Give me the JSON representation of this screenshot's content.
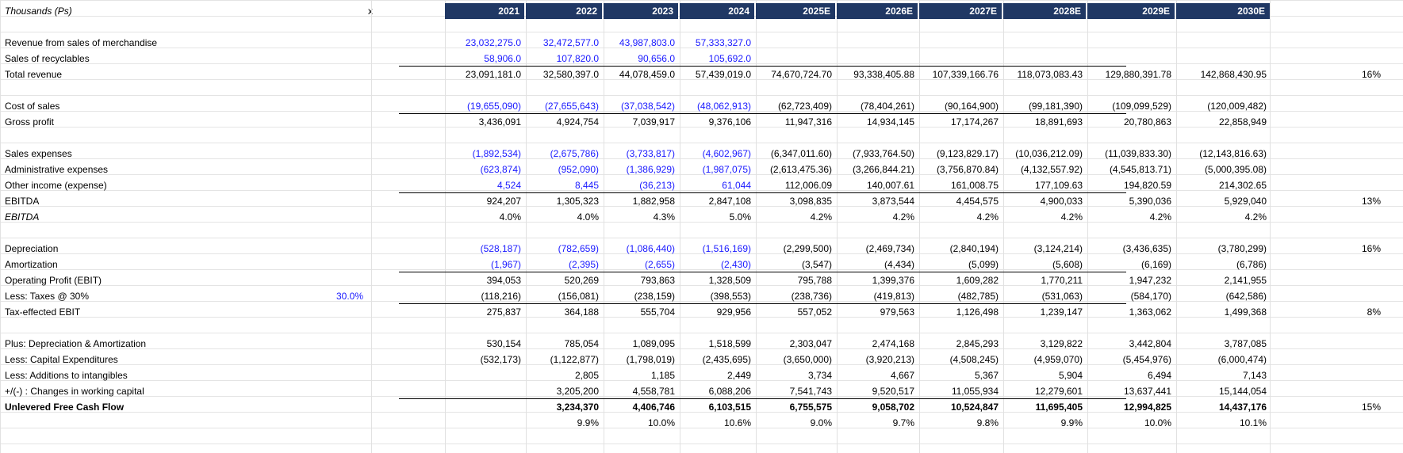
{
  "sheet": {
    "corner_label": "Thousands (Ps)",
    "x_marker": "x",
    "years": [
      "2021",
      "2022",
      "2023",
      "2024",
      "2025E",
      "2026E",
      "2027E",
      "2028E",
      "2029E",
      "2030E"
    ],
    "tax_rate": "30.0%",
    "rows": [
      {
        "label": "Revenue from sales of merchandise",
        "cells": [
          "23,032,275.0",
          "32,472,577.0",
          "43,987,803.0",
          "57,333,327.0",
          "",
          "",
          "",
          "",
          "",
          ""
        ]
      },
      {
        "label": "Sales of recyclables",
        "cells": [
          "58,906.0",
          "107,820.0",
          "90,656.0",
          "105,692.0",
          "",
          "",
          "",
          "",
          "",
          ""
        ]
      },
      {
        "label": "Total revenue",
        "cells": [
          "23,091,181.0",
          "32,580,397.0",
          "44,078,459.0",
          "57,439,019.0",
          "74,670,724.70",
          "93,338,405.88",
          "107,339,166.76",
          "118,073,083.43",
          "129,880,391.78",
          "142,868,430.95"
        ],
        "growth": "16%"
      },
      {
        "label": "Cost of sales",
        "cells": [
          "(19,655,090)",
          "(27,655,643)",
          "(37,038,542)",
          "(48,062,913)",
          "(62,723,409)",
          "(78,404,261)",
          "(90,164,900)",
          "(99,181,390)",
          "(109,099,529)",
          "(120,009,482)"
        ]
      },
      {
        "label": "Gross profit",
        "cells": [
          "3,436,091",
          "4,924,754",
          "7,039,917",
          "9,376,106",
          "11,947,316",
          "14,934,145",
          "17,174,267",
          "18,891,693",
          "20,780,863",
          "22,858,949"
        ]
      },
      {
        "label": "Sales expenses",
        "cells": [
          "(1,892,534)",
          "(2,675,786)",
          "(3,733,817)",
          "(4,602,967)",
          "(6,347,011.60)",
          "(7,933,764.50)",
          "(9,123,829.17)",
          "(10,036,212.09)",
          "(11,039,833.30)",
          "(12,143,816.63)"
        ]
      },
      {
        "label": "Administrative expenses",
        "cells": [
          "(623,874)",
          "(952,090)",
          "(1,386,929)",
          "(1,987,075)",
          "(2,613,475.36)",
          "(3,266,844.21)",
          "(3,756,870.84)",
          "(4,132,557.92)",
          "(4,545,813.71)",
          "(5,000,395.08)"
        ]
      },
      {
        "label": "Other income (expense)",
        "cells": [
          "4,524",
          "8,445",
          "(36,213)",
          "61,044",
          "112,006.09",
          "140,007.61",
          "161,008.75",
          "177,109.63",
          "194,820.59",
          "214,302.65"
        ]
      },
      {
        "label": "EBITDA",
        "cells": [
          "924,207",
          "1,305,323",
          "1,882,958",
          "2,847,108",
          "3,098,835",
          "3,873,544",
          "4,454,575",
          "4,900,033",
          "5,390,036",
          "5,929,040"
        ],
        "growth": "13%"
      },
      {
        "label": "EBITDA",
        "cells": [
          "4.0%",
          "4.0%",
          "4.3%",
          "5.0%",
          "4.2%",
          "4.2%",
          "4.2%",
          "4.2%",
          "4.2%",
          "4.2%"
        ]
      },
      {
        "label": "Depreciation",
        "cells": [
          "(528,187)",
          "(782,659)",
          "(1,086,440)",
          "(1,516,169)",
          "(2,299,500)",
          "(2,469,734)",
          "(2,840,194)",
          "(3,124,214)",
          "(3,436,635)",
          "(3,780,299)"
        ],
        "growth": "16%"
      },
      {
        "label": "Amortization",
        "cells": [
          "(1,967)",
          "(2,395)",
          "(2,655)",
          "(2,430)",
          "(3,547)",
          "(4,434)",
          "(5,099)",
          "(5,608)",
          "(6,169)",
          "(6,786)"
        ]
      },
      {
        "label": "Operating Profit (EBIT)",
        "cells": [
          "394,053",
          "520,269",
          "793,863",
          "1,328,509",
          "795,788",
          "1,399,376",
          "1,609,282",
          "1,770,211",
          "1,947,232",
          "2,141,955"
        ]
      },
      {
        "label": "Less: Taxes @ 30%",
        "cells": [
          "(118,216)",
          "(156,081)",
          "(238,159)",
          "(398,553)",
          "(238,736)",
          "(419,813)",
          "(482,785)",
          "(531,063)",
          "(584,170)",
          "(642,586)"
        ]
      },
      {
        "label": "Tax-effected EBIT",
        "cells": [
          "275,837",
          "364,188",
          "555,704",
          "929,956",
          "557,052",
          "979,563",
          "1,126,498",
          "1,239,147",
          "1,363,062",
          "1,499,368"
        ],
        "growth": "8%"
      },
      {
        "label": "Plus: Depreciation & Amortization",
        "cells": [
          "530,154",
          "785,054",
          "1,089,095",
          "1,518,599",
          "2,303,047",
          "2,474,168",
          "2,845,293",
          "3,129,822",
          "3,442,804",
          "3,787,085"
        ]
      },
      {
        "label": "Less: Capital Expenditures",
        "cells": [
          "(532,173)",
          "(1,122,877)",
          "(1,798,019)",
          "(2,435,695)",
          "(3,650,000)",
          "(3,920,213)",
          "(4,508,245)",
          "(4,959,070)",
          "(5,454,976)",
          "(6,000,474)"
        ]
      },
      {
        "label": "Less: Additions to intangibles",
        "cells": [
          "",
          "2,805",
          "1,185",
          "2,449",
          "3,734",
          "4,667",
          "5,367",
          "5,904",
          "6,494",
          "7,143"
        ]
      },
      {
        "label": "+/(-) : Changes in working capital",
        "cells": [
          "",
          "3,205,200",
          "4,558,781",
          "6,088,206",
          "7,541,743",
          "9,520,517",
          "11,055,934",
          "12,279,601",
          "13,637,441",
          "15,144,054"
        ]
      },
      {
        "label": "Unlevered Free Cash Flow",
        "cells": [
          "",
          "3,234,370",
          "4,406,746",
          "6,103,515",
          "6,755,575",
          "9,058,702",
          "10,524,847",
          "11,695,405",
          "12,994,825",
          "14,437,176"
        ],
        "growth": "15%"
      },
      {
        "label": "",
        "cells": [
          "",
          "9.9%",
          "10.0%",
          "10.6%",
          "9.0%",
          "9.7%",
          "9.8%",
          "9.9%",
          "10.0%",
          "10.1%"
        ]
      }
    ]
  },
  "colors": {
    "header_bg": "#203864",
    "input_blue": "#1a1aff"
  }
}
